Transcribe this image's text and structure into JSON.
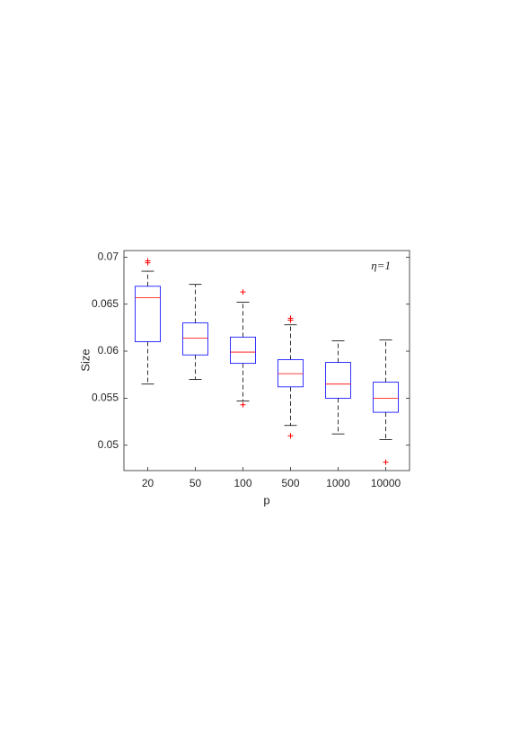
{
  "chart_data": {
    "type": "box",
    "xlabel": "p",
    "ylabel": "Size",
    "annotation": "η=1",
    "categories": [
      "20",
      "50",
      "100",
      "500",
      "1000",
      "10000"
    ],
    "boxes": [
      {
        "whislo": 0.0565,
        "q1": 0.061,
        "med": 0.0657,
        "q3": 0.0669,
        "whishi": 0.0685,
        "fliers": [
          0.0696,
          0.0694
        ]
      },
      {
        "whislo": 0.057,
        "q1": 0.0596,
        "med": 0.0614,
        "q3": 0.063,
        "whishi": 0.0671,
        "fliers": []
      },
      {
        "whislo": 0.0547,
        "q1": 0.0587,
        "med": 0.0599,
        "q3": 0.0615,
        "whishi": 0.0652,
        "fliers": [
          0.0663,
          0.0543
        ]
      },
      {
        "whislo": 0.0521,
        "q1": 0.0562,
        "med": 0.0576,
        "q3": 0.0591,
        "whishi": 0.0628,
        "fliers": [
          0.0635,
          0.0633,
          0.051
        ]
      },
      {
        "whislo": 0.0512,
        "q1": 0.055,
        "med": 0.0565,
        "q3": 0.0588,
        "whishi": 0.0611,
        "fliers": []
      },
      {
        "whislo": 0.0506,
        "q1": 0.0535,
        "med": 0.055,
        "q3": 0.0567,
        "whishi": 0.0612,
        "fliers": [
          0.0482
        ]
      }
    ],
    "box_color": "#0000ff",
    "median_color": "#ff0000",
    "whisker_color": "#000000",
    "flier_color": "#ff0000",
    "ylim": [
      0.0473,
      0.0707
    ],
    "yticks": [
      0.05,
      0.055,
      0.06,
      0.065,
      0.07
    ]
  }
}
